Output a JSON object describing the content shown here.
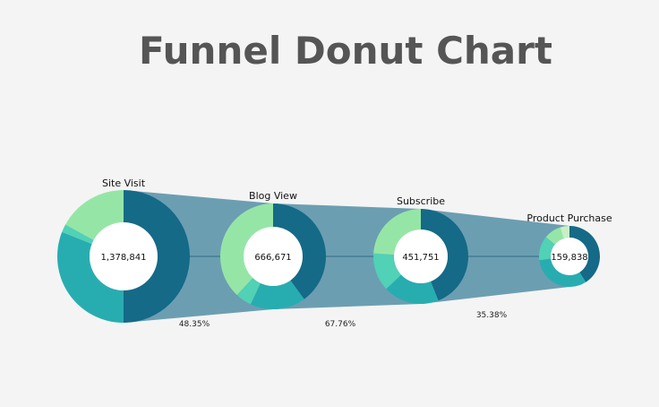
{
  "chart_data": {
    "type": "funnel-donut",
    "title": "Funnel Donut Chart",
    "stages": [
      {
        "name": "Site Visit",
        "value": "1,378,841",
        "segments": [
          {
            "share": 0.5,
            "color": "#146a87"
          },
          {
            "share": 0.31,
            "color": "#27adb0"
          },
          {
            "share": 0.02,
            "color": "#51d1b6"
          },
          {
            "share": 0.17,
            "color": "#95e6a6"
          }
        ]
      },
      {
        "name": "Blog View",
        "value": "666,671",
        "segments": [
          {
            "share": 0.4,
            "color": "#146a87"
          },
          {
            "share": 0.17,
            "color": "#27adb0"
          },
          {
            "share": 0.05,
            "color": "#51d1b6"
          },
          {
            "share": 0.38,
            "color": "#95e6a6"
          }
        ]
      },
      {
        "name": "Subscribe",
        "value": "451,751",
        "segments": [
          {
            "share": 0.44,
            "color": "#146a87"
          },
          {
            "share": 0.19,
            "color": "#27adb0"
          },
          {
            "share": 0.13,
            "color": "#51d1b6"
          },
          {
            "share": 0.24,
            "color": "#95e6a6"
          }
        ]
      },
      {
        "name": "Product Purchase",
        "value": "159,838",
        "segments": [
          {
            "share": 0.41,
            "color": "#146a87"
          },
          {
            "share": 0.32,
            "color": "#27adb0"
          },
          {
            "share": 0.13,
            "color": "#51d1b6"
          },
          {
            "share": 0.09,
            "color": "#95e6a6"
          },
          {
            "share": 0.05,
            "color": "#c8f0c4"
          }
        ]
      }
    ],
    "conversions": [
      "48.35%",
      "67.76%",
      "35.38%"
    ],
    "funnel_color": "#2b7592"
  }
}
